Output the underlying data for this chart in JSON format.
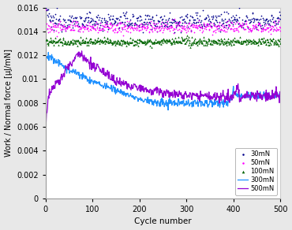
{
  "title": "",
  "xlabel": "Cycle number",
  "ylabel": "Work / Normal force [μJ/mN]",
  "xlim": [
    0,
    500
  ],
  "ylim": [
    0,
    0.016
  ],
  "yticks": [
    0,
    0.002,
    0.004,
    0.006,
    0.008,
    0.01,
    0.012,
    0.014,
    0.016
  ],
  "ytick_labels": [
    "0",
    "0.002",
    "0.004",
    "0.006",
    "0.008",
    "0.01",
    "0.012",
    "0.014",
    "0.016"
  ],
  "xticks": [
    0,
    100,
    200,
    300,
    400,
    500
  ],
  "colors": {
    "30mN": "#00008B",
    "50mN": "#FF00FF",
    "100mN": "#006400",
    "300mN": "#1E90FF",
    "500mN": "#9400D3"
  },
  "legend_loc": "lower right",
  "figsize": [
    3.7,
    2.92
  ],
  "dpi": 100
}
